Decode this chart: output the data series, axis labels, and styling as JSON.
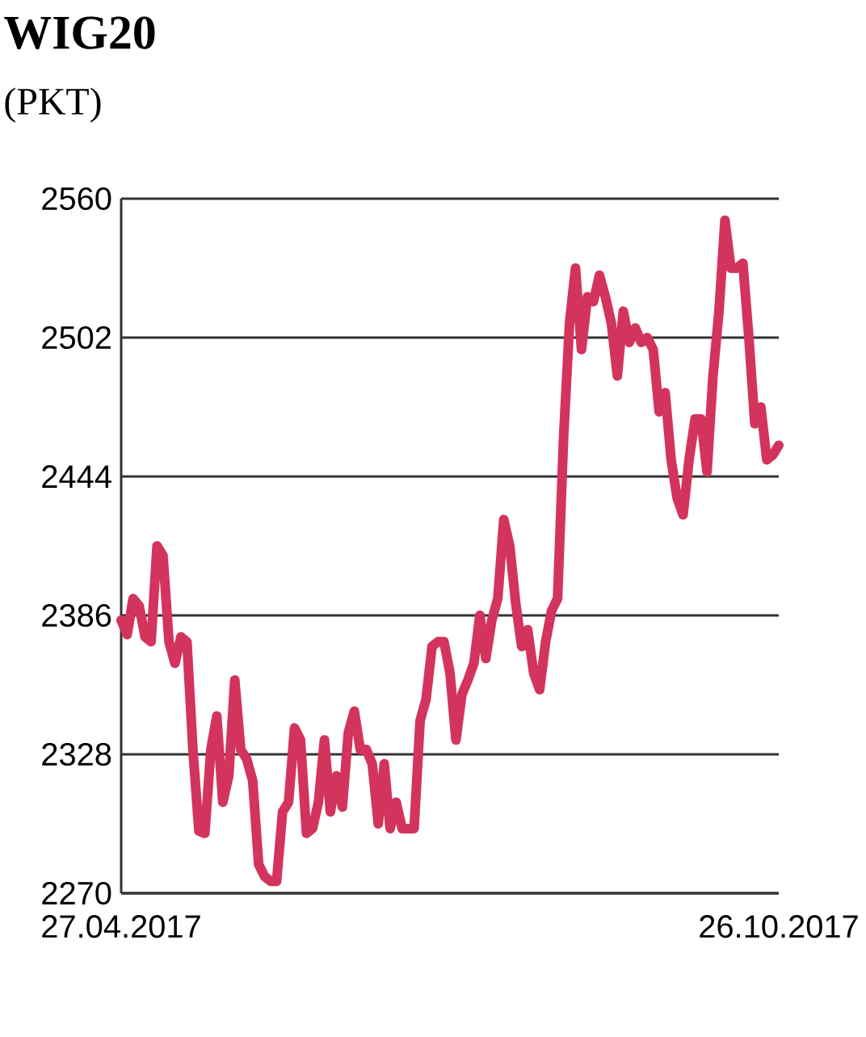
{
  "chart_data": {
    "type": "line",
    "title": "WIG20",
    "subtitle": "(PKT)",
    "categories": [
      "27.04.2017",
      null,
      null,
      null,
      null,
      null,
      null,
      null,
      null,
      null,
      null,
      null,
      null,
      null,
      null,
      null,
      null,
      null,
      null,
      null,
      null,
      null,
      null,
      null,
      null,
      null,
      null,
      null,
      null,
      null,
      null,
      null,
      null,
      null,
      null,
      null,
      null,
      null,
      null,
      null,
      null,
      null,
      null,
      null,
      null,
      null,
      null,
      null,
      null,
      null,
      null,
      null,
      null,
      null,
      null,
      null,
      null,
      null,
      null,
      null,
      null,
      null,
      null,
      null,
      null,
      null,
      null,
      null,
      null,
      null,
      null,
      null,
      null,
      null,
      null,
      null,
      null,
      null,
      null,
      null,
      null,
      null,
      null,
      null,
      null,
      null,
      null,
      null,
      null,
      null,
      null,
      null,
      null,
      null,
      null,
      null,
      null,
      null,
      null,
      null,
      null,
      null,
      null,
      null,
      null,
      null,
      null,
      null,
      null,
      null,
      "26.10.2017"
    ],
    "values": [
      2384,
      2378,
      2393,
      2390,
      2377,
      2375,
      2415,
      2411,
      2375,
      2366,
      2377,
      2375,
      2330,
      2296,
      2295,
      2330,
      2344,
      2308,
      2319,
      2359,
      2330,
      2326,
      2317,
      2282,
      2277,
      2275,
      2275,
      2304,
      2308,
      2339,
      2334,
      2295,
      2297,
      2308,
      2334,
      2304,
      2319,
      2306,
      2337,
      2346,
      2330,
      2330,
      2324,
      2299,
      2324,
      2297,
      2308,
      2297,
      2297,
      2297,
      2342,
      2351,
      2373,
      2375,
      2375,
      2362,
      2334,
      2353,
      2359,
      2366,
      2386,
      2368,
      2384,
      2393,
      2426,
      2415,
      2391,
      2373,
      2380,
      2362,
      2355,
      2375,
      2388,
      2393,
      2460,
      2508,
      2531,
      2497,
      2519,
      2517,
      2528,
      2519,
      2508,
      2486,
      2513,
      2500,
      2506,
      2500,
      2502,
      2497,
      2471,
      2479,
      2451,
      2435,
      2428,
      2451,
      2468,
      2468,
      2446,
      2486,
      2513,
      2551,
      2531,
      2531,
      2533,
      2502,
      2466,
      2473,
      2451,
      2453,
      2457
    ],
    "color": "#d3345d",
    "ylim": [
      2270,
      2560
    ],
    "yticks": [
      2270,
      2328,
      2386,
      2444,
      2502,
      2560
    ],
    "grid": "y"
  }
}
